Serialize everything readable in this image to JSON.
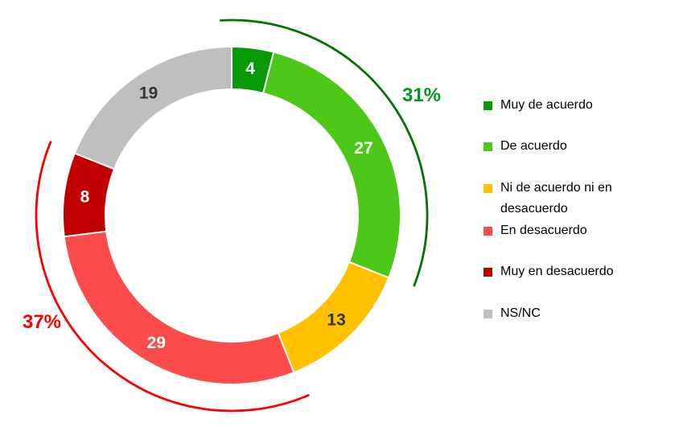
{
  "chart_data": {
    "type": "donut",
    "title": "",
    "categories": [
      "Muy de acuerdo",
      "De acuerdo",
      "Ni de acuerdo ni en desacuerdo",
      "En desacuerdo",
      "Muy en desacuerdo",
      "NS/NC"
    ],
    "values": [
      4,
      27,
      13,
      29,
      8,
      19
    ],
    "colors": [
      "#069A06",
      "#4DC818",
      "#FFC000",
      "#FB4B4B",
      "#C00000",
      "#BFBFBF"
    ],
    "value_label_colors": [
      "#FFFFFF",
      "#FFFFFF",
      "#333333",
      "#FFFFFF",
      "#FFFFFF",
      "#333333"
    ],
    "start_angle_deg": 0,
    "direction": "clockwise",
    "legend_position": "right",
    "brackets": [
      {
        "label": "31%",
        "text_color": "#009920",
        "arc_color": "#047204",
        "from_segment": 0,
        "to_segment": 1
      },
      {
        "label": "37%",
        "text_color": "#FE0000",
        "arc_color": "#FE0000",
        "from_segment": 3,
        "to_segment": 4
      }
    ]
  }
}
